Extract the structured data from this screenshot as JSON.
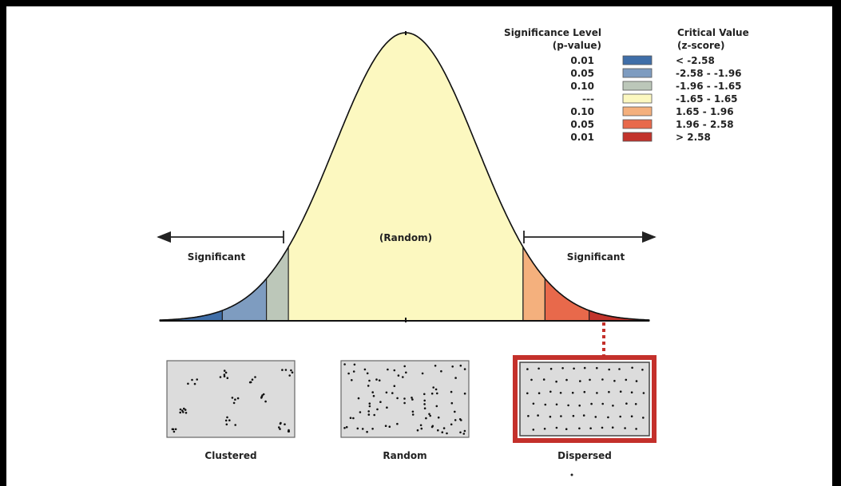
{
  "legend": {
    "header_left_1": "Significance Level",
    "header_left_2": "(p-value)",
    "header_right_1": "Critical Value",
    "header_right_2": "(z-score)",
    "rows": [
      {
        "p": "0.01",
        "z": "< -2.58",
        "color": "#3f6ea8"
      },
      {
        "p": "0.05",
        "z": "-2.58 - -1.96",
        "color": "#7e9cc0"
      },
      {
        "p": "0.10",
        "z": "-1.96 - -1.65",
        "color": "#bcc7b9"
      },
      {
        "p": "---",
        "z": "-1.65 - 1.65",
        "color": "#fcf8c0"
      },
      {
        "p": "0.10",
        "z": "1.65 - 1.96",
        "color": "#f4b07d"
      },
      {
        "p": "0.05",
        "z": "1.96 - 2.58",
        "color": "#e8694b"
      },
      {
        "p": "0.01",
        "z": "> 2.58",
        "color": "#c2332b"
      }
    ]
  },
  "curve": {
    "center_label": "(Random)",
    "left_label": "Significant",
    "right_label": "Significant"
  },
  "panels": [
    {
      "label": "Clustered"
    },
    {
      "label": "Random"
    },
    {
      "label": "Dispersed"
    }
  ],
  "colors": {
    "highlight": "#c4302b",
    "panel_bg": "#dcdcdc"
  }
}
